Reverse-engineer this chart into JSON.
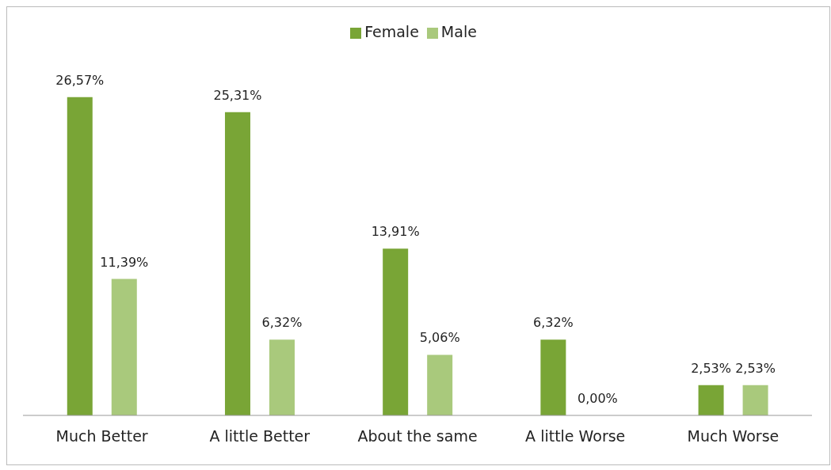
{
  "chart_data": {
    "type": "bar",
    "categories": [
      "Much Better",
      "A little Better",
      "About the same",
      "A little Worse",
      "Much Worse"
    ],
    "series": [
      {
        "name": "Female",
        "color": "#79a536",
        "values": [
          26.57,
          25.31,
          13.91,
          6.32,
          2.53
        ],
        "value_labels": [
          "26,57%",
          "25,31%",
          "13,91%",
          "6,32%",
          "2,53%"
        ]
      },
      {
        "name": "Male",
        "color": "#a9c97c",
        "values": [
          11.39,
          6.32,
          5.06,
          0,
          2.53
        ],
        "value_labels": [
          "11,39%",
          "6,32%",
          "5,06%",
          "0,00%",
          "2,53%"
        ]
      }
    ],
    "legend": "top",
    "grid": false
  }
}
